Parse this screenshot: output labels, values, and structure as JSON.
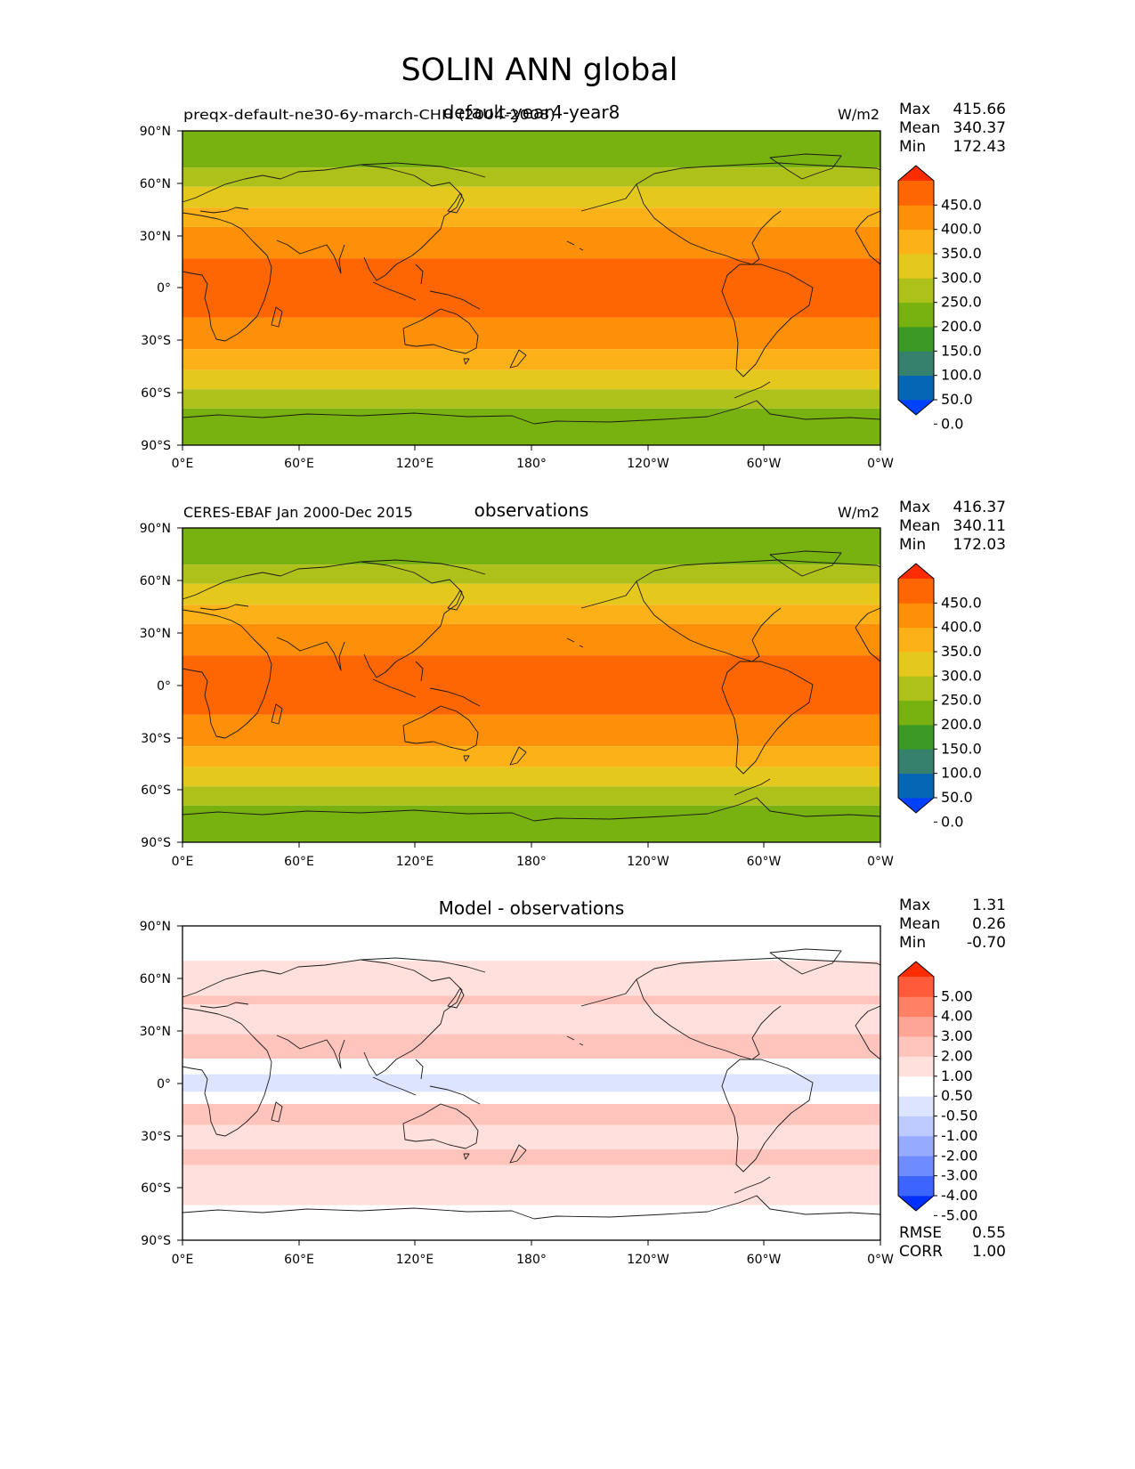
{
  "figure_title": "SOLIN ANN global",
  "chart_data": [
    {
      "type": "heatmap",
      "id": "test",
      "title": "default-year4-year8",
      "left_label": "preqx-default-ne30-6y-march-CHH (2004-2008)",
      "units": "W/m2",
      "stats": [
        {
          "label": "Max",
          "value": "415.66"
        },
        {
          "label": "Mean",
          "value": "340.37"
        },
        {
          "label": "Min",
          "value": "172.43"
        }
      ],
      "colorbar": {
        "tick_labels": [
          "450.0",
          "400.0",
          "350.0",
          "300.0",
          "250.0",
          "200.0",
          "150.0",
          "100.0",
          "50.0",
          "0.0"
        ],
        "colors": [
          "#0040ff",
          "#0466b4",
          "#36806e",
          "#3a9a24",
          "#78b211",
          "#aec11b",
          "#e5c81d",
          "#fdb118",
          "#fe8f08",
          "#fe6603",
          "#fd2c01"
        ]
      },
      "bands": [
        {
          "lat_from": 90,
          "lat_to": 69,
          "value": 172.43
        },
        {
          "lat_from": 69,
          "lat_to": 58,
          "value": 225
        },
        {
          "lat_from": 58,
          "lat_to": 46,
          "value": 275
        },
        {
          "lat_from": 46,
          "lat_to": 35,
          "value": 325
        },
        {
          "lat_from": 35,
          "lat_to": 17,
          "value": 375
        },
        {
          "lat_from": 17,
          "lat_to": -17,
          "value": 415.66
        },
        {
          "lat_from": -17,
          "lat_to": -35,
          "value": 375
        },
        {
          "lat_from": -35,
          "lat_to": -47,
          "value": 325
        },
        {
          "lat_from": -47,
          "lat_to": -58,
          "value": 275
        },
        {
          "lat_from": -58,
          "lat_to": -69,
          "value": 225
        },
        {
          "lat_from": -69,
          "lat_to": -90,
          "value": 172.43
        }
      ]
    },
    {
      "type": "heatmap",
      "id": "reference",
      "title": "observations",
      "left_label": "CERES-EBAF Jan 2000-Dec 2015",
      "units": "W/m2",
      "stats": [
        {
          "label": "Max",
          "value": "416.37"
        },
        {
          "label": "Mean",
          "value": "340.11"
        },
        {
          "label": "Min",
          "value": "172.03"
        }
      ],
      "colorbar": {
        "tick_labels": [
          "450.0",
          "400.0",
          "350.0",
          "300.0",
          "250.0",
          "200.0",
          "150.0",
          "100.0",
          "50.0",
          "0.0"
        ],
        "colors": [
          "#0040ff",
          "#0466b4",
          "#36806e",
          "#3a9a24",
          "#78b211",
          "#aec11b",
          "#e5c81d",
          "#fdb118",
          "#fe8f08",
          "#fe6603",
          "#fd2c01"
        ]
      },
      "bands": [
        {
          "lat_from": 90,
          "lat_to": 69,
          "value": 172.03
        },
        {
          "lat_from": 69,
          "lat_to": 58,
          "value": 225
        },
        {
          "lat_from": 58,
          "lat_to": 46,
          "value": 275
        },
        {
          "lat_from": 46,
          "lat_to": 35,
          "value": 325
        },
        {
          "lat_from": 35,
          "lat_to": 17,
          "value": 375
        },
        {
          "lat_from": 17,
          "lat_to": -17,
          "value": 416.37
        },
        {
          "lat_from": -17,
          "lat_to": -35,
          "value": 375
        },
        {
          "lat_from": -35,
          "lat_to": -47,
          "value": 325
        },
        {
          "lat_from": -47,
          "lat_to": -58,
          "value": 275
        },
        {
          "lat_from": -58,
          "lat_to": -69,
          "value": 225
        },
        {
          "lat_from": -69,
          "lat_to": -90,
          "value": 172.03
        }
      ]
    },
    {
      "type": "heatmap",
      "id": "diff",
      "title": "Model - observations",
      "left_label": "",
      "units": "",
      "stats": [
        {
          "label": "Max",
          "value": "1.31"
        },
        {
          "label": "Mean",
          "value": "0.26"
        },
        {
          "label": "Min",
          "value": "-0.70"
        }
      ],
      "colorbar": {
        "tick_labels": [
          "5.00",
          "4.00",
          "3.00",
          "2.00",
          "1.00",
          "0.50",
          "-0.50",
          "-1.00",
          "-2.00",
          "-3.00",
          "-4.00",
          "-5.00"
        ],
        "colors": [
          "#0030ff",
          "#3c64ff",
          "#6e8cff",
          "#96aaff",
          "#bccaff",
          "#dce4ff",
          "#ffffff",
          "#ffe0dc",
          "#ffc4bb",
          "#ffa596",
          "#ff8064",
          "#ff5a3a",
          "#fd2c01"
        ]
      },
      "bands": [
        {
          "lat_from": 90,
          "lat_to": 70,
          "value": 0.2
        },
        {
          "lat_from": 70,
          "lat_to": 50,
          "value": 0.55
        },
        {
          "lat_from": 50,
          "lat_to": 45,
          "value": 1.1
        },
        {
          "lat_from": 45,
          "lat_to": 28,
          "value": 0.5
        },
        {
          "lat_from": 28,
          "lat_to": 14,
          "value": 1.2
        },
        {
          "lat_from": 14,
          "lat_to": 5,
          "value": 0.2
        },
        {
          "lat_from": 5,
          "lat_to": -5,
          "value": -0.7
        },
        {
          "lat_from": -5,
          "lat_to": -12,
          "value": 0.2
        },
        {
          "lat_from": -12,
          "lat_to": -24,
          "value": 1.31
        },
        {
          "lat_from": -24,
          "lat_to": -38,
          "value": 0.55
        },
        {
          "lat_from": -38,
          "lat_to": -47,
          "value": 1.1
        },
        {
          "lat_from": -47,
          "lat_to": -70,
          "value": 0.55
        },
        {
          "lat_from": -70,
          "lat_to": -90,
          "value": 0.2
        }
      ],
      "extra_stats": [
        {
          "label": "RMSE",
          "value": "0.55"
        },
        {
          "label": "CORR",
          "value": "1.00"
        }
      ]
    }
  ],
  "axes": {
    "lat_ticks": [
      "90°N",
      "60°N",
      "30°N",
      "0°",
      "30°S",
      "60°S",
      "90°S"
    ],
    "lon_ticks": [
      "0°E",
      "60°E",
      "120°E",
      "180°",
      "120°W",
      "60°W",
      "0°W"
    ],
    "lat_range": [
      -90,
      90
    ],
    "lon_range": [
      0,
      360
    ]
  }
}
